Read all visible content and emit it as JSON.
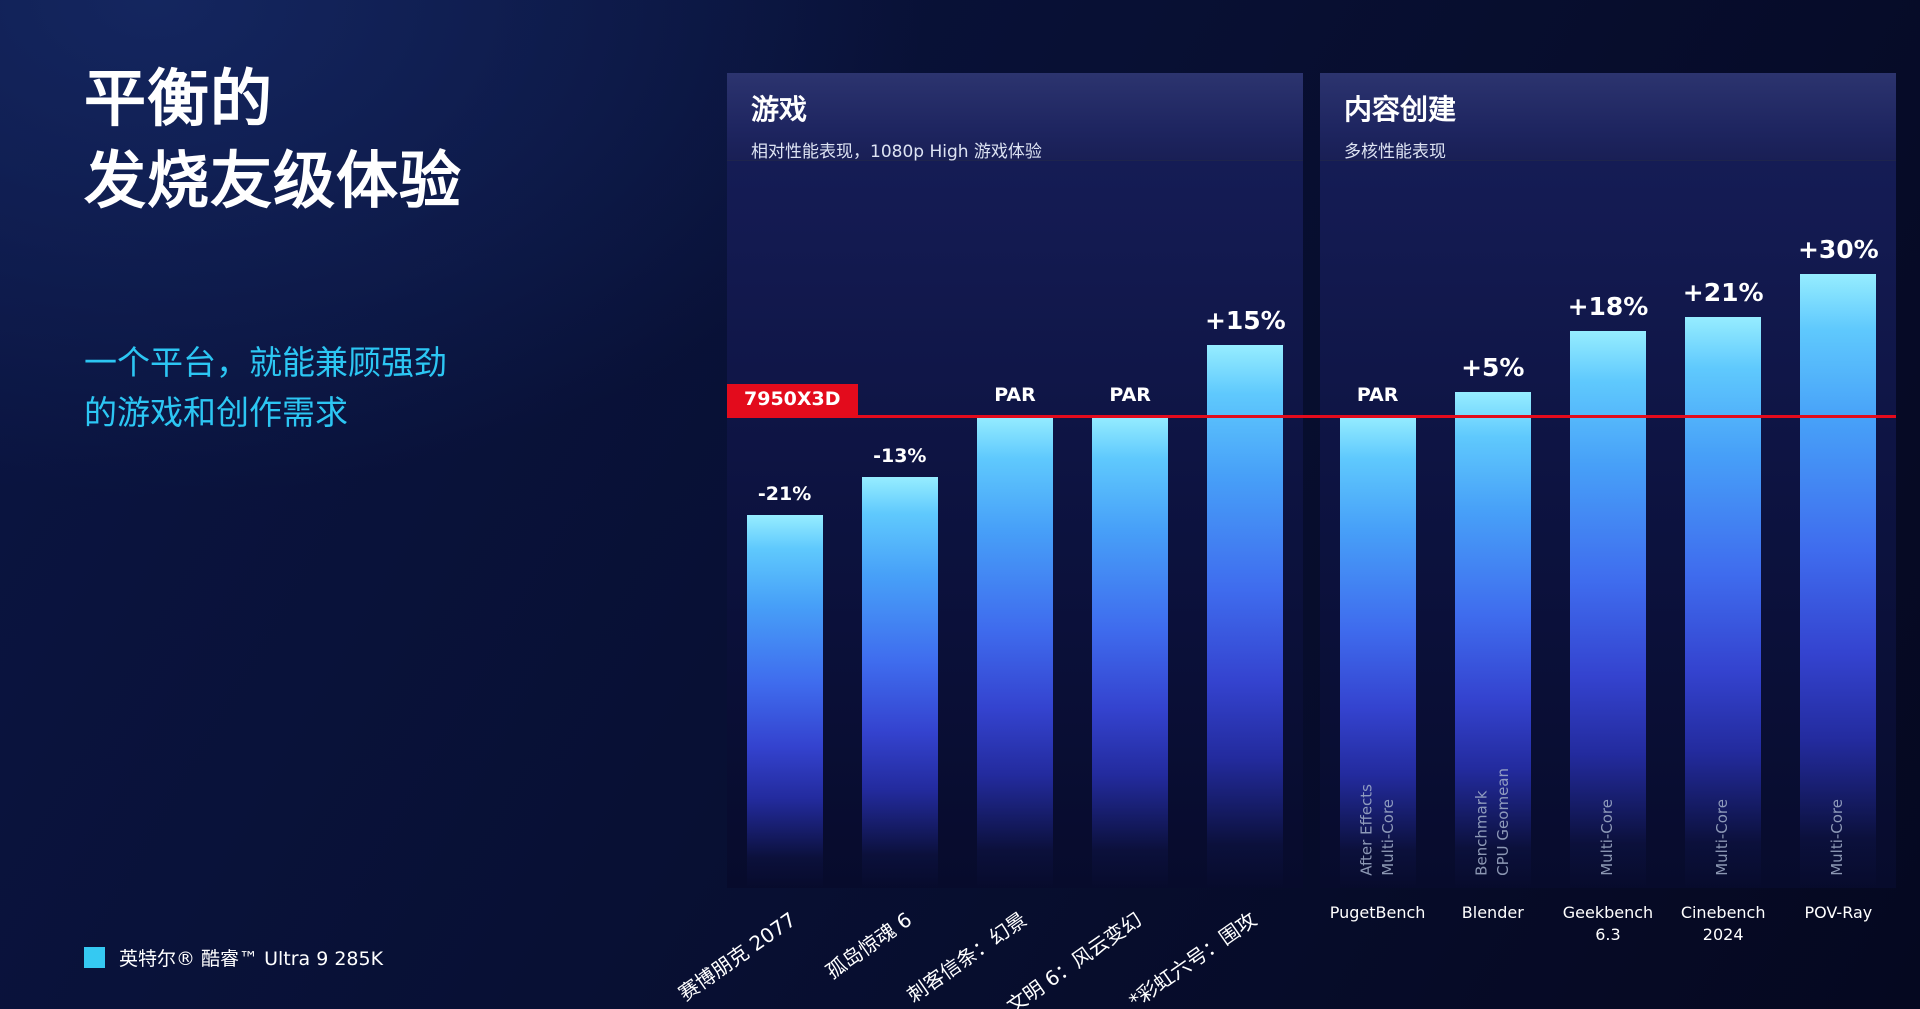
{
  "slide": {
    "title_lines": [
      "平衡的",
      "发烧友级体验"
    ],
    "tagline_lines": [
      "一个平台，就能兼顾强劲",
      "的游戏和创作需求"
    ],
    "legend": {
      "label": "英特尔® 酷睿™ Ultra 9 285K",
      "swatch_color": "#35c9f2"
    }
  },
  "baseline": {
    "label": "7950X3D",
    "color": "#e30b1c"
  },
  "colors": {
    "accent_cyan": "#2cc6f3",
    "bar_top": "#96edff",
    "bar_mid": "#3f6cee",
    "bar_deep": "#232b9e",
    "panel_header": "#2c346f",
    "background": "#081034",
    "baseline_red": "#e30b1c"
  },
  "chart_data": [
    {
      "type": "bar",
      "title": "游戏",
      "subtitle": "相对性能表现，1080p High 游戏体验",
      "categories": [
        "赛博朋克 2077",
        "孤岛惊魂 6",
        "刺客信条：幻景",
        "文明 6：风云变幻",
        "*彩虹六号：围攻"
      ],
      "values": [
        -21,
        -13,
        0,
        0,
        15
      ],
      "value_unit": "% vs 7950X3D baseline (PAR = 100%)",
      "bar_labels": [
        "-21%",
        "-13%",
        "PAR",
        "PAR",
        "+15%"
      ],
      "bar_sublabels": [
        "",
        "",
        "",
        "",
        ""
      ],
      "baseline_label": "7950X3D",
      "baseline_value_pct": 100,
      "category_label_style": "rotated",
      "grid": false,
      "legend_entries": [
        "英特尔® 酷睿™ Ultra 9 285K"
      ],
      "legend_position": "bottom-left",
      "xlabel": "",
      "ylabel": ""
    },
    {
      "type": "bar",
      "title": "内容创建",
      "subtitle": "多核性能表现",
      "categories": [
        "PugetBench",
        "Blender",
        "Geekbench 6.3",
        "Cinebench\n2024",
        "POV-Ray"
      ],
      "values": [
        0,
        5,
        18,
        21,
        30
      ],
      "value_unit": "% vs 7950X3D baseline (PAR = 100%)",
      "bar_labels": [
        "PAR",
        "+5%",
        "+18%",
        "+21%",
        "+30%"
      ],
      "bar_sublabels": [
        "After Effects\nMulti-Core",
        "Benchmark\nCPU Geomean",
        "Multi-Core",
        "Multi-Core",
        "Multi-Core"
      ],
      "baseline_label": "7950X3D",
      "baseline_value_pct": 100,
      "category_label_style": "horizontal",
      "grid": false,
      "legend_entries": [
        "英特尔® 酷睿™ Ultra 9 285K"
      ],
      "legend_position": "bottom-left",
      "xlabel": "",
      "ylabel": ""
    }
  ]
}
